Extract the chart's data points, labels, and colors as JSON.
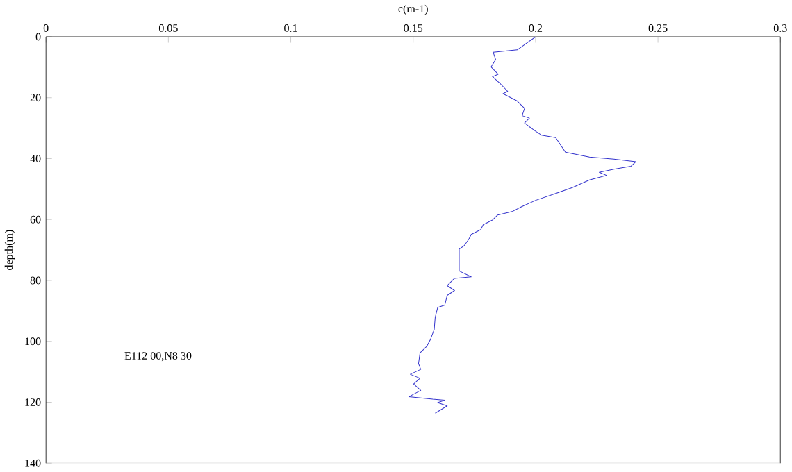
{
  "chart_data": {
    "type": "line",
    "xlabel": "c(m-1)",
    "ylabel": "depth(m)",
    "annotations": [
      "E112 00,N8 30"
    ],
    "xlim": [
      0,
      0.3
    ],
    "ylim": [
      140,
      0
    ],
    "xticks": [
      0,
      0.05,
      0.1,
      0.15,
      0.2,
      0.25,
      0.3
    ],
    "yticks": [
      0,
      20,
      40,
      60,
      80,
      100,
      120,
      140
    ],
    "grid": false,
    "marker": "none",
    "line_style": "solid",
    "series": [
      {
        "color": "#3333cc",
        "x": [
          0.2,
          0.1925,
          0.1827,
          0.1837,
          0.1818,
          0.1847,
          0.1824,
          0.1857,
          0.1886,
          0.1867,
          0.1925,
          0.1955,
          0.1945,
          0.1975,
          0.1955,
          0.1994,
          0.2024,
          0.2082,
          0.2102,
          0.2122,
          0.222,
          0.232,
          0.241,
          0.239,
          0.232,
          0.226,
          0.229,
          0.222,
          0.215,
          0.208,
          0.2,
          0.1943,
          0.1904,
          0.1845,
          0.1825,
          0.1786,
          0.1776,
          0.1737,
          0.1727,
          0.1708,
          0.1688,
          0.1688,
          0.1737,
          0.1669,
          0.1639,
          0.1669,
          0.1639,
          0.1629,
          0.16,
          0.159,
          0.1586,
          0.1571,
          0.1555,
          0.1528,
          0.1522,
          0.1531,
          0.1488,
          0.1528,
          0.1502,
          0.1531,
          0.1482,
          0.158,
          0.1629,
          0.16,
          0.1639,
          0.159
        ],
        "values": [
          0,
          4.3,
          5.1,
          7.5,
          9.9,
          12.3,
          13.1,
          15.5,
          17.9,
          18.7,
          21.1,
          23.5,
          25.9,
          26.7,
          28.3,
          30.7,
          32.3,
          33.1,
          35.5,
          37.9,
          39.5,
          40.2,
          41,
          42.5,
          43.5,
          44.5,
          45.5,
          47,
          49.5,
          51.5,
          53.7,
          55.8,
          57.4,
          58.5,
          60.1,
          61.7,
          63.3,
          64.9,
          66.5,
          68.6,
          69.7,
          76.9,
          78.8,
          79.3,
          81.7,
          83.3,
          84.9,
          88.1,
          88.9,
          92.1,
          96.1,
          99.3,
          101.7,
          103.8,
          107.3,
          109.2,
          110.8,
          112.1,
          114,
          116.1,
          118.2,
          119,
          119.3,
          120.1,
          121.2,
          123.6
        ]
      }
    ]
  }
}
